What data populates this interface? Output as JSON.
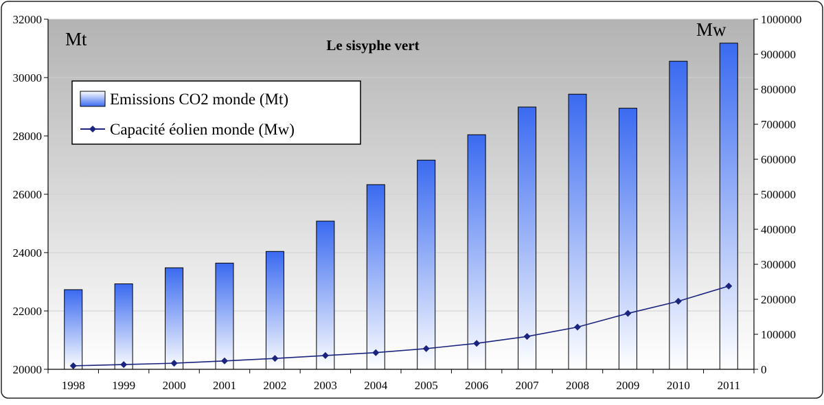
{
  "chart_data": {
    "type": "bar+line",
    "title": "Le sisyphe  vert",
    "left_unit": "Mt",
    "right_unit": "Mw",
    "categories": [
      "1998",
      "1999",
      "2000",
      "2001",
      "2002",
      "2003",
      "2004",
      "2005",
      "2006",
      "2007",
      "2008",
      "2009",
      "2010",
      "2011"
    ],
    "y_left": {
      "min": 20000,
      "max": 32000,
      "ticks": [
        20000,
        22000,
        24000,
        26000,
        28000,
        30000,
        32000
      ]
    },
    "y_right": {
      "min": 0,
      "max": 1000000,
      "ticks": [
        0,
        100000,
        200000,
        300000,
        400000,
        500000,
        600000,
        700000,
        800000,
        900000,
        1000000
      ]
    },
    "series": [
      {
        "name": "Emissions CO2 monde (Mt)",
        "type": "bar",
        "axis": "left",
        "values": [
          22730,
          22930,
          23480,
          23640,
          24040,
          25080,
          26330,
          27170,
          28040,
          28990,
          29430,
          28950,
          30560,
          31180
        ]
      },
      {
        "name": "Capacité éolien monde (Mw)",
        "type": "line",
        "axis": "right",
        "values": [
          10000,
          13600,
          17400,
          23900,
          31100,
          39400,
          47600,
          59100,
          74100,
          93800,
          120600,
          159700,
          194400,
          237700
        ]
      }
    ],
    "grid": true,
    "legend_position": "top-left",
    "colors": {
      "bar_top": "#3a6af0",
      "bar_bottom": "#ffffff",
      "line": "#1a237e",
      "plot_bg_top": "#b3b3b3",
      "plot_bg_bottom": "#ffffff"
    }
  }
}
